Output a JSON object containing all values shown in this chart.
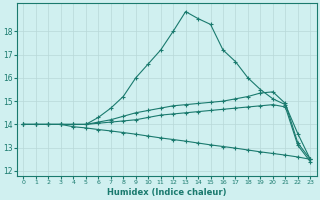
{
  "bg_color": "#d0f0f0",
  "line_color": "#1a7a6e",
  "grid_color": "#b8d8d8",
  "xlabel": "Humidex (Indice chaleur)",
  "xlim": [
    -0.5,
    23.5
  ],
  "ylim": [
    11.8,
    19.2
  ],
  "yticks": [
    12,
    13,
    14,
    15,
    16,
    17,
    18
  ],
  "xticks": [
    0,
    1,
    2,
    3,
    4,
    5,
    6,
    7,
    8,
    9,
    10,
    11,
    12,
    13,
    14,
    15,
    16,
    17,
    18,
    19,
    20,
    21,
    22,
    23
  ],
  "series": [
    {
      "x": [
        0,
        1,
        2,
        3,
        4,
        5,
        6,
        7,
        8,
        9,
        10,
        11,
        12,
        13,
        14,
        15,
        16,
        17,
        18,
        19,
        20,
        21,
        22,
        23
      ],
      "y": [
        14.0,
        14.0,
        14.0,
        14.0,
        14.0,
        14.0,
        14.3,
        14.7,
        15.2,
        16.0,
        16.6,
        17.2,
        18.0,
        18.85,
        18.55,
        18.3,
        17.2,
        16.7,
        16.0,
        15.5,
        15.1,
        14.85,
        13.6,
        12.5
      ]
    },
    {
      "x": [
        0,
        1,
        2,
        3,
        4,
        5,
        6,
        7,
        8,
        9,
        10,
        11,
        12,
        13,
        14,
        15,
        16,
        17,
        18,
        19,
        20,
        21,
        22,
        23
      ],
      "y": [
        14.0,
        14.0,
        14.0,
        14.0,
        14.0,
        14.0,
        14.1,
        14.2,
        14.35,
        14.5,
        14.6,
        14.7,
        14.8,
        14.85,
        14.9,
        14.95,
        15.0,
        15.1,
        15.2,
        15.35,
        15.4,
        14.9,
        13.2,
        12.5
      ]
    },
    {
      "x": [
        0,
        1,
        2,
        3,
        4,
        5,
        6,
        7,
        8,
        9,
        10,
        11,
        12,
        13,
        14,
        15,
        16,
        17,
        18,
        19,
        20,
        21,
        22,
        23
      ],
      "y": [
        14.0,
        14.0,
        14.0,
        14.0,
        14.0,
        14.0,
        14.05,
        14.1,
        14.15,
        14.2,
        14.3,
        14.4,
        14.45,
        14.5,
        14.55,
        14.6,
        14.65,
        14.7,
        14.75,
        14.8,
        14.85,
        14.75,
        13.1,
        12.4
      ]
    },
    {
      "x": [
        0,
        1,
        2,
        3,
        4,
        5,
        6,
        7,
        8,
        9,
        10,
        11,
        12,
        13,
        14,
        15,
        16,
        17,
        18,
        19,
        20,
        21,
        22,
        23
      ],
      "y": [
        14.0,
        14.0,
        14.0,
        14.0,
        13.9,
        13.85,
        13.78,
        13.72,
        13.65,
        13.58,
        13.5,
        13.42,
        13.35,
        13.28,
        13.2,
        13.12,
        13.05,
        12.98,
        12.9,
        12.82,
        12.75,
        12.68,
        12.6,
        12.5
      ]
    }
  ]
}
